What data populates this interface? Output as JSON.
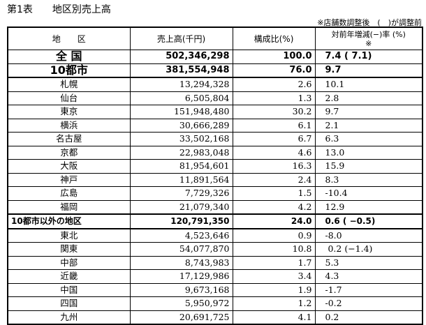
{
  "title": "第1表　　地区別売上高",
  "note": "※店舗数調整後　(　)が調整前",
  "headers": [
    "地　　区",
    "売上高(千円)",
    "構成比(%)",
    "対前年増減(−)率 (%)\n※"
  ],
  "rows": [
    {
      "area": "全 国",
      "sales": "502,346,298",
      "share": "100.0",
      "change": "7.4 ( 7.1)",
      "style": "big"
    },
    {
      "area": "10都市",
      "sales": "381,554,948",
      "share": "76.0",
      "change": "9.7",
      "style": "big"
    },
    {
      "area": "札幌",
      "sales": "13,294,328",
      "share": "2.6",
      "change": "10.1"
    },
    {
      "area": "仙台",
      "sales": "6,505,804",
      "share": "1.3",
      "change": "2.8"
    },
    {
      "area": "東京",
      "sales": "151,948,480",
      "share": "30.2",
      "change": "9.7"
    },
    {
      "area": "横浜",
      "sales": "30,666,289",
      "share": "6.1",
      "change": "2.1"
    },
    {
      "area": "名古屋",
      "sales": "33,502,168",
      "share": "6.7",
      "change": "6.3"
    },
    {
      "area": "京都",
      "sales": "22,983,048",
      "share": "4.6",
      "change": "13.0"
    },
    {
      "area": "大阪",
      "sales": "81,954,601",
      "share": "16.3",
      "change": "15.9"
    },
    {
      "area": "神戸",
      "sales": "11,891,564",
      "share": "2.4",
      "change": "8.3"
    },
    {
      "area": "広島",
      "sales": "7,729,326",
      "share": "1.5",
      "change": "-10.4"
    },
    {
      "area": "福岡",
      "sales": "21,079,340",
      "share": "4.2",
      "change": "12.9"
    },
    {
      "area": "10都市以外の地区",
      "sales": "120,791,350",
      "share": "24.0",
      "change": "0.6 ( −0.5)",
      "style": "ex"
    },
    {
      "area": "東北",
      "sales": "4,523,646",
      "share": "0.9",
      "change": "-8.0"
    },
    {
      "area": "関東",
      "sales": "54,077,870",
      "share": "10.8",
      "change": " 0.2 (−1.4)"
    },
    {
      "area": "中部",
      "sales": "8,743,983",
      "share": "1.7",
      "change": "5.3"
    },
    {
      "area": "近畿",
      "sales": "17,129,986",
      "share": "3.4",
      "change": "4.3"
    },
    {
      "area": "中国",
      "sales": "9,673,168",
      "share": "1.9",
      "change": "-1.7"
    },
    {
      "area": "四国",
      "sales": "5,950,972",
      "share": "1.2",
      "change": "-0.2"
    },
    {
      "area": "九州",
      "sales": "20,691,725",
      "share": "4.1",
      "change": "0.2"
    }
  ]
}
